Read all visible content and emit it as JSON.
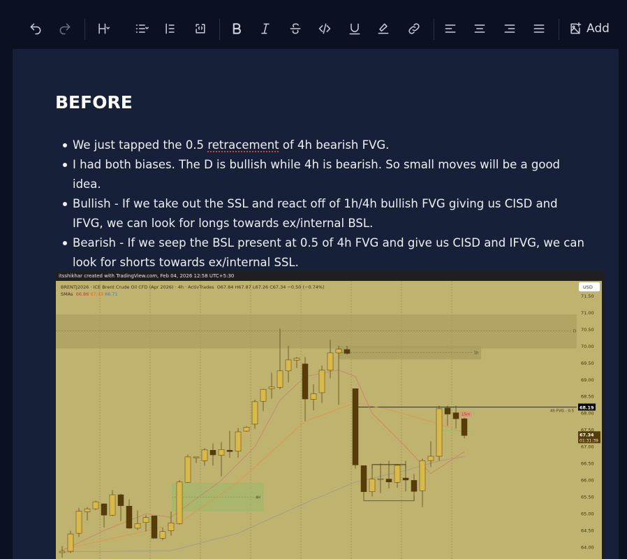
{
  "toolbar": {
    "items": [
      {
        "name": "undo-icon"
      },
      {
        "name": "redo-icon"
      },
      {
        "name": "heading-icon"
      },
      {
        "name": "list-icon"
      },
      {
        "name": "blockquote-icon"
      },
      {
        "name": "code-block-icon"
      },
      {
        "name": "bold-icon"
      },
      {
        "name": "italic-icon"
      },
      {
        "name": "strikethrough-icon"
      },
      {
        "name": "code-icon"
      },
      {
        "name": "underline-icon"
      },
      {
        "name": "highlight-icon"
      },
      {
        "name": "link-icon"
      },
      {
        "name": "align-left-icon"
      },
      {
        "name": "align-center-icon"
      },
      {
        "name": "align-right-icon"
      },
      {
        "name": "align-justify-icon"
      },
      {
        "name": "image-add-icon"
      }
    ],
    "add_label": "Add"
  },
  "content": {
    "heading": "BEFORE",
    "bullets": [
      {
        "pre": "We just tapped the 0.5 ",
        "spell": "retracement",
        "post": " of 4h bearish FVG."
      },
      {
        "pre": "I had both biases. The D is bullish while 4h is bearish. So small moves will be a good idea.",
        "spell": "",
        "post": ""
      },
      {
        "pre": "Bullish - If we take out the SSL and react off of 1h/4h bullish FVG giving us CISD and IFVG, we can look for longs towards ex/internal BSL.",
        "spell": "",
        "post": ""
      },
      {
        "pre": "Bearish - If we seep the BSL present at 0.5 of 4h FVG and give us CISD and IFVG, we can look for shorts towards ex/internal SSL.",
        "spell": "",
        "post": ""
      }
    ]
  },
  "chart_image": {
    "credit": "itsshikhar created with TradingView.com, Feb 04, 2026 12:58 UTC+5:30",
    "symbol_line": "BRENTJ2026 · ICE Brent Crude Oil CFD (Apr 2026) · 4h · ActivTrades",
    "ohlc": "O67.84  H67.87  L67.26  C67.34  −0.50 (−0.74%)",
    "sma_label": "SMAs",
    "sma_values": [
      "66.86",
      "67.43",
      "66.71"
    ],
    "currency": "USD",
    "price_ticks": [
      "71.50",
      "71.00",
      "70.50",
      "70.00",
      "69.50",
      "69.00",
      "68.50",
      "68.00",
      "67.50",
      "67.00",
      "66.50",
      "66.00",
      "65.50",
      "65.00",
      "64.50",
      "64.00"
    ],
    "level_label": "68.19",
    "level_text": "4h FVG - 0.5",
    "last_price": "67.34",
    "countdown": "01:31:39",
    "zone_labels": {
      "d": "D",
      "h1": "1h",
      "h4": "4H",
      "m15": "15m"
    },
    "colors": {
      "bg": "#c0b26f",
      "bull": "#d9b94a",
      "bear": "#573c08",
      "sma_fast": "#c9806a",
      "sma_mid": "#e0954e",
      "sma_slow": "#9c9a88"
    },
    "candles": [
      [
        63.84,
        64.04,
        63.69,
        63.88
      ],
      [
        63.88,
        64.49,
        63.83,
        64.4
      ],
      [
        64.42,
        65.18,
        64.31,
        65.08
      ],
      [
        65.06,
        65.2,
        64.8,
        65.15
      ],
      [
        65.15,
        65.39,
        65.12,
        65.36
      ],
      [
        65.3,
        65.3,
        64.59,
        64.96
      ],
      [
        64.96,
        65.71,
        64.94,
        65.57
      ],
      [
        65.57,
        65.6,
        64.78,
        65.24
      ],
      [
        65.23,
        65.43,
        64.56,
        64.57
      ],
      [
        64.57,
        65.1,
        64.52,
        64.71
      ],
      [
        64.74,
        64.96,
        64.47,
        64.89
      ],
      [
        64.94,
        64.94,
        64.27,
        64.27
      ],
      [
        64.27,
        64.59,
        64.21,
        64.47
      ],
      [
        64.5,
        65.07,
        64.35,
        64.73
      ],
      [
        64.71,
        66.01,
        64.68,
        65.95
      ],
      [
        65.94,
        66.77,
        65.92,
        66.7
      ],
      [
        66.69,
        66.7,
        66.52,
        66.7
      ],
      [
        66.59,
        66.96,
        66.44,
        66.91
      ],
      [
        66.9,
        67.1,
        66.44,
        66.76
      ],
      [
        66.75,
        67.15,
        66.12,
        66.92
      ],
      [
        66.9,
        67.48,
        66.68,
        66.86
      ],
      [
        66.87,
        67.56,
        66.68,
        67.45
      ],
      [
        67.47,
        67.62,
        67.45,
        67.59
      ],
      [
        67.68,
        68.41,
        67.54,
        68.35
      ],
      [
        68.36,
        68.73,
        68.07,
        68.72
      ],
      [
        68.74,
        69.22,
        68.44,
        68.79
      ],
      [
        68.78,
        70.54,
        68.72,
        69.27
      ],
      [
        69.27,
        70.02,
        68.93,
        69.6
      ],
      [
        69.59,
        69.69,
        69.36,
        69.65
      ],
      [
        69.48,
        69.69,
        67.77,
        68.43
      ],
      [
        68.42,
        68.87,
        68.09,
        68.59
      ],
      [
        68.62,
        69.43,
        68.32,
        69.29
      ],
      [
        69.29,
        70.2,
        69.05,
        69.81
      ],
      [
        69.81,
        70.02,
        68.26,
        69.92
      ],
      [
        69.91,
        70.02,
        69.76,
        69.79
      ],
      [
        68.74,
        68.74,
        66.35,
        66.46
      ],
      [
        66.44,
        66.44,
        65.52,
        65.66
      ],
      [
        65.66,
        66.47,
        65.52,
        66.04
      ],
      [
        66.04,
        66.51,
        65.62,
        66.05
      ],
      [
        66.04,
        66.58,
        65.76,
        65.95
      ],
      [
        65.94,
        66.49,
        65.78,
        66.45
      ],
      [
        66.07,
        66.58,
        65.67,
        66.01
      ],
      [
        66.0,
        66.19,
        65.39,
        65.67
      ],
      [
        65.69,
        66.65,
        65.2,
        66.59
      ],
      [
        66.59,
        67.17,
        66.4,
        66.72
      ],
      [
        66.72,
        68.23,
        66.58,
        68.14
      ],
      [
        68.16,
        68.23,
        67.63,
        67.98
      ],
      [
        68.02,
        68.23,
        67.55,
        67.84
      ],
      [
        67.84,
        67.87,
        67.26,
        67.34
      ]
    ],
    "sma_fast": [
      [
        1,
        63.9
      ],
      [
        6,
        64.5
      ],
      [
        11,
        65.0
      ],
      [
        14,
        64.9
      ],
      [
        20,
        66.0
      ],
      [
        24,
        67.0
      ],
      [
        27,
        68.4
      ],
      [
        30,
        69.1
      ],
      [
        34,
        69.3
      ],
      [
        36,
        69.1
      ],
      [
        38,
        68.0
      ],
      [
        42,
        67.0
      ],
      [
        45,
        66.2
      ],
      [
        49,
        66.86
      ]
    ],
    "sma_mid": [
      [
        1,
        63.93
      ],
      [
        11,
        64.49
      ],
      [
        15,
        64.73
      ],
      [
        22,
        65.95
      ],
      [
        30,
        67.76
      ],
      [
        36,
        68.32
      ],
      [
        40,
        68.11
      ],
      [
        45,
        67.76
      ],
      [
        49,
        67.43
      ]
    ],
    "sma_slow": [
      [
        1,
        63.86
      ],
      [
        14,
        63.9
      ],
      [
        22,
        64.42
      ],
      [
        30,
        65.32
      ],
      [
        36,
        65.95
      ],
      [
        42,
        66.3
      ],
      [
        46,
        66.58
      ],
      [
        49,
        66.71
      ]
    ],
    "zones": {
      "d": [
        69.94,
        70.96,
        70.47
      ],
      "h1": [
        69.62,
        70.02,
        69.82
      ],
      "h4": [
        65.07,
        65.92,
        65.5
      ],
      "fvg_level": 68.19,
      "bsl": 66.47,
      "ssl": 65.39
    }
  }
}
